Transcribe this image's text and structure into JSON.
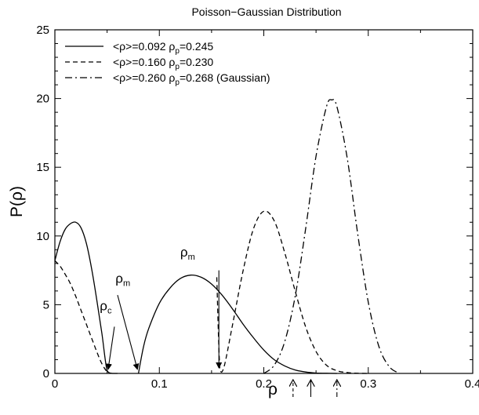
{
  "chart_data": {
    "type": "line",
    "title": "Poisson−Gaussian  Distribution",
    "xlabel": "ρ",
    "ylabel": "P(ρ)",
    "xlim": [
      0,
      0.4
    ],
    "ylim": [
      0,
      25
    ],
    "xticks": [
      0,
      0.1,
      0.2,
      0.3,
      0.4
    ],
    "xtick_labels": [
      "0",
      "0.1",
      "0.2",
      "0.3",
      "0.4"
    ],
    "yticks": [
      0,
      5,
      10,
      15,
      20,
      25
    ],
    "ytick_labels": [
      "0",
      "5",
      "10",
      "15",
      "20",
      "25"
    ],
    "grid": false,
    "legend_position": "top-left",
    "series": [
      {
        "legend_main": "<ρ>=0.092 ρ",
        "legend_sub": "p",
        "legend_tail": "=0.245",
        "style": "solid",
        "segments": [
          {
            "x": [
              0,
              0.005,
              0.01,
              0.015,
              0.02,
              0.025,
              0.03,
              0.035,
              0.04,
              0.045,
              0.05,
              0.055,
              0.06
            ],
            "y": [
              8.2,
              9.6,
              10.5,
              10.9,
              11.0,
              10.6,
              9.5,
              7.7,
              5.4,
              2.9,
              0.2,
              0,
              0
            ]
          },
          {
            "x": [
              0.08,
              0.085,
              0.09,
              0.1,
              0.11,
              0.12,
              0.13,
              0.14,
              0.15,
              0.16,
              0.17,
              0.18,
              0.19,
              0.2,
              0.21,
              0.22,
              0.23,
              0.24,
              0.25,
              0.26,
              0.27
            ],
            "y": [
              0,
              2.0,
              3.3,
              5.1,
              6.2,
              6.9,
              7.15,
              7.0,
              6.5,
              5.7,
              4.7,
              3.6,
              2.6,
              1.7,
              1.0,
              0.55,
              0.25,
              0.1,
              0.03,
              0.01,
              0
            ]
          }
        ]
      },
      {
        "legend_main": "<ρ>=0.160 ρ",
        "legend_sub": "p",
        "legend_tail": "=0.230",
        "style": "dashed",
        "segments": [
          {
            "x": [
              0,
              0.005,
              0.01,
              0.015,
              0.02,
              0.025,
              0.03,
              0.035,
              0.04,
              0.045,
              0.05,
              0.052
            ],
            "y": [
              8.2,
              7.8,
              7.2,
              6.5,
              5.6,
              4.6,
              3.6,
              2.6,
              1.6,
              0.7,
              0.1,
              0
            ]
          },
          {
            "x": [
              0.155,
              0.158,
              0.162,
              0.17,
              0.18,
              0.19,
              0.2,
              0.21,
              0.22,
              0.23,
              0.24,
              0.25,
              0.26,
              0.27,
              0.28,
              0.29,
              0.3
            ],
            "y": [
              7.0,
              0.3,
              0.5,
              3.5,
              7.4,
              10.5,
              11.8,
              11.1,
              8.8,
              6.0,
              3.4,
              1.6,
              0.6,
              0.2,
              0.06,
              0.01,
              0
            ]
          }
        ]
      },
      {
        "legend_main": "<ρ>=0.260 ρ",
        "legend_sub": "p",
        "legend_tail": "=0.268 (Gaussian)",
        "style": "dashdot",
        "segments": [
          {
            "x": [
              0.2,
              0.21,
              0.22,
              0.23,
              0.24,
              0.25,
              0.26,
              0.265,
              0.27,
              0.28,
              0.29,
              0.3,
              0.31,
              0.32,
              0.33
            ],
            "y": [
              0,
              0.6,
              2.3,
              5.6,
              10.5,
              15.8,
              19.4,
              19.9,
              19.4,
              15.6,
              10.1,
              5.2,
              2.0,
              0.5,
              0
            ]
          }
        ]
      }
    ],
    "annotations": [
      {
        "main": "ρ",
        "sub": "c",
        "label_x": 0.043,
        "label_y": 4.6,
        "arrow_from": [
          0.051,
          3.4
        ],
        "arrow_to": [
          0.051,
          0.3
        ],
        "tilt": 0.006
      },
      {
        "main": "ρ",
        "sub": "m",
        "label_x": 0.058,
        "label_y": 6.6,
        "arrow_from": [
          0.06,
          5.7
        ],
        "arrow_to": [
          0.079,
          0.3
        ],
        "tilt": 0
      },
      {
        "main": "ρ",
        "sub": "m",
        "label_x": 0.12,
        "label_y": 8.5,
        "arrow_from": [
          0.157,
          7.5
        ],
        "arrow_to": [
          0.157,
          0.4
        ],
        "tilt": 0
      }
    ],
    "axis_arrows": [
      {
        "x": 0.228,
        "style": "dashed"
      },
      {
        "x": 0.245,
        "style": "solid"
      },
      {
        "x": 0.27,
        "style": "dashdot"
      }
    ]
  }
}
